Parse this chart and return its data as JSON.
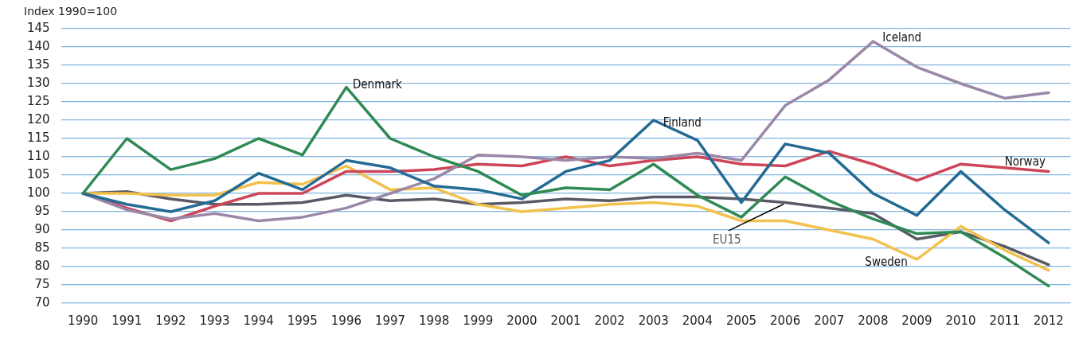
{
  "chart_data": {
    "type": "line",
    "ylabel": "Index 1990=100",
    "categories": [
      "1990",
      "1991",
      "1992",
      "1993",
      "1994",
      "1995",
      "1996",
      "1997",
      "1998",
      "1999",
      "2000",
      "2001",
      "2002",
      "2003",
      "2004",
      "2005",
      "2006",
      "2007",
      "2008",
      "2009",
      "2010",
      "2011",
      "2012"
    ],
    "series": [
      {
        "name": "Denmark",
        "color": "#2f8a55",
        "values": [
          100,
          115,
          106.5,
          109.5,
          115,
          110.5,
          129,
          115,
          110,
          106,
          99.5,
          101.5,
          101,
          108,
          99.5,
          93.5,
          104.5,
          98,
          93,
          89,
          89.5,
          82.5,
          74.7
        ]
      },
      {
        "name": "Finland",
        "color": "#236a94",
        "values": [
          100,
          97,
          95,
          98,
          105.5,
          101,
          109,
          107,
          102,
          101,
          98.5,
          106,
          109,
          120,
          114.5,
          97.5,
          113.5,
          111,
          100,
          94,
          106,
          95.5,
          86.5
        ]
      },
      {
        "name": "Iceland",
        "color": "#9b88a8",
        "values": [
          100,
          95.5,
          93,
          94.5,
          92.5,
          93.5,
          96,
          100,
          104,
          110.5,
          110,
          109,
          110,
          109.5,
          111,
          109,
          124,
          131,
          141.5,
          134.5,
          130,
          126,
          127.5
        ]
      },
      {
        "name": "Norway",
        "color": "#cc4559",
        "values": [
          100,
          96,
          92.5,
          96.5,
          100,
          100,
          106,
          106,
          106.5,
          108,
          107.5,
          110,
          107.5,
          109,
          110,
          108,
          107.5,
          111.5,
          108,
          103.5,
          108,
          107,
          106
        ]
      },
      {
        "name": "Sweden",
        "color": "#f2c14e",
        "values": [
          100,
          100,
          99.5,
          99.5,
          103,
          102.5,
          107.5,
          101,
          101.5,
          97,
          95,
          96,
          97,
          97.5,
          96.5,
          92.5,
          92.5,
          90,
          87.5,
          82,
          91,
          84.5,
          79
        ]
      },
      {
        "name": "EU15",
        "color": "#5a5a66",
        "values": [
          100,
          100.5,
          98.5,
          97,
          97,
          97.5,
          99.5,
          98,
          98.5,
          97,
          97.5,
          98.5,
          98,
          99,
          99,
          98.5,
          97.5,
          96,
          94.5,
          87.5,
          89.5,
          85.5,
          80.5
        ]
      }
    ],
    "ylim": [
      70,
      145
    ],
    "yticks": [
      70,
      75,
      80,
      85,
      90,
      95,
      100,
      105,
      110,
      115,
      120,
      125,
      130,
      135,
      140,
      145
    ],
    "grid": "y",
    "legend": false,
    "marker": "none",
    "line_style": "solid"
  }
}
